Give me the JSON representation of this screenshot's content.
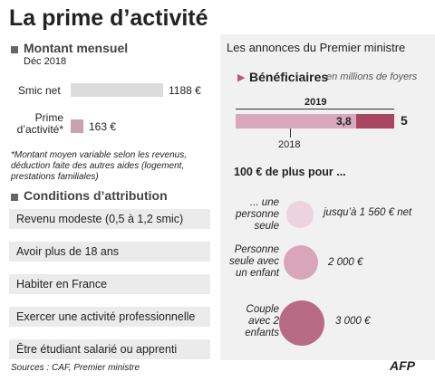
{
  "title": "La prime d’activité",
  "montant": {
    "heading": "Montant mensuel",
    "date": "Déc 2018",
    "bars": [
      {
        "label": "Smic net",
        "value": 1188,
        "value_label": "1188 €"
      },
      {
        "label": "Prime d’activité*",
        "value": 163,
        "value_label": "163 €"
      }
    ],
    "note": "*Montant moyen variable selon les revenus, déduction faite des autres aides (logement, prestations familiales)"
  },
  "conditions": {
    "heading": "Conditions d’attribution",
    "items": [
      "Revenu modeste (0,5 à 1,2 smic)",
      "Avoir plus de 18 ans",
      "Habiter en France",
      "Exercer une activité professionnelle",
      "Être étudiant salarié ou apprenti"
    ]
  },
  "annonces": {
    "heading": "Les annonces du Premier ministre",
    "beneficiaires": {
      "label": "Bénéficiaires",
      "unit": "en millions de foyers",
      "year_top": "2019",
      "year_bottom": "2018",
      "values": [
        3.8,
        5
      ],
      "value_labels": [
        "3,8",
        "5"
      ]
    },
    "plus": {
      "heading": "100 € de plus pour ...",
      "rows": [
        {
          "label": "... une personne seule",
          "amount": "jusqu’à 1 560 € net"
        },
        {
          "label": "Personne seule avec un enfant",
          "amount": "2 000 €"
        },
        {
          "label": "Couple avec 2 enfants",
          "amount": "3 000 €"
        }
      ]
    }
  },
  "source": "Sources : CAF, Premier ministre",
  "credit": "AFP"
}
